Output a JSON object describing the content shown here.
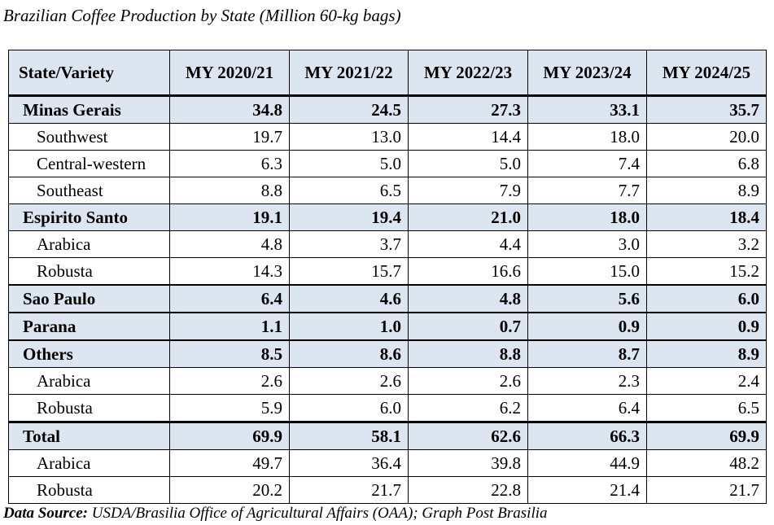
{
  "caption": "Brazilian Coffee Production by State (Million 60-kg bags)",
  "table": {
    "columns": [
      "State/Variety",
      "MY 2020/21",
      "MY 2021/22",
      "MY 2022/23",
      "MY 2023/24",
      "MY 2024/25"
    ],
    "rows": [
      {
        "label": "Minas Gerais",
        "values": [
          "34.8",
          "24.5",
          "27.3",
          "33.1",
          "35.7"
        ],
        "kind": "group"
      },
      {
        "label": "Southwest",
        "values": [
          "19.7",
          "13.0",
          "14.4",
          "18.0",
          "20.0"
        ],
        "kind": "sub"
      },
      {
        "label": "Central-western",
        "values": [
          "6.3",
          "5.0",
          "5.0",
          "7.4",
          "6.8"
        ],
        "kind": "sub"
      },
      {
        "label": "Southeast",
        "values": [
          "8.8",
          "6.5",
          "7.9",
          "7.7",
          "8.9"
        ],
        "kind": "sub"
      },
      {
        "label": "Espirito Santo",
        "values": [
          "19.1",
          "19.4",
          "21.0",
          "18.0",
          "18.4"
        ],
        "kind": "group"
      },
      {
        "label": "Arabica",
        "values": [
          "4.8",
          "3.7",
          "4.4",
          "3.0",
          "3.2"
        ],
        "kind": "sub"
      },
      {
        "label": "Robusta",
        "values": [
          "14.3",
          "15.7",
          "16.6",
          "15.0",
          "15.2"
        ],
        "kind": "sub"
      },
      {
        "label": "Sao Paulo",
        "values": [
          "6.4",
          "4.6",
          "4.8",
          "5.6",
          "6.0"
        ],
        "kind": "group"
      },
      {
        "label": "Parana",
        "values": [
          "1.1",
          "1.0",
          "0.7",
          "0.9",
          "0.9"
        ],
        "kind": "group"
      },
      {
        "label": "Others",
        "values": [
          "8.5",
          "8.6",
          "8.8",
          "8.7",
          "8.9"
        ],
        "kind": "group"
      },
      {
        "label": "Arabica",
        "values": [
          "2.6",
          "2.6",
          "2.6",
          "2.3",
          "2.4"
        ],
        "kind": "sub"
      },
      {
        "label": "Robusta",
        "values": [
          "5.9",
          "6.0",
          "6.2",
          "6.4",
          "6.5"
        ],
        "kind": "sub"
      },
      {
        "label": "Total",
        "values": [
          "69.9",
          "58.1",
          "62.6",
          "66.3",
          "69.9"
        ],
        "kind": "total"
      },
      {
        "label": "Arabica",
        "values": [
          "49.7",
          "36.4",
          "39.8",
          "44.9",
          "48.2"
        ],
        "kind": "sub"
      },
      {
        "label": "Robusta",
        "values": [
          "20.2",
          "21.7",
          "22.8",
          "21.4",
          "21.7"
        ],
        "kind": "sub"
      }
    ]
  },
  "source": {
    "label": "Data Source:",
    "text": " USDA/Brasilia Office of Agricultural Affairs (OAA); Graph Post Brasilia"
  },
  "colors": {
    "header_fill": "#dce6f1",
    "border": "#000000"
  }
}
